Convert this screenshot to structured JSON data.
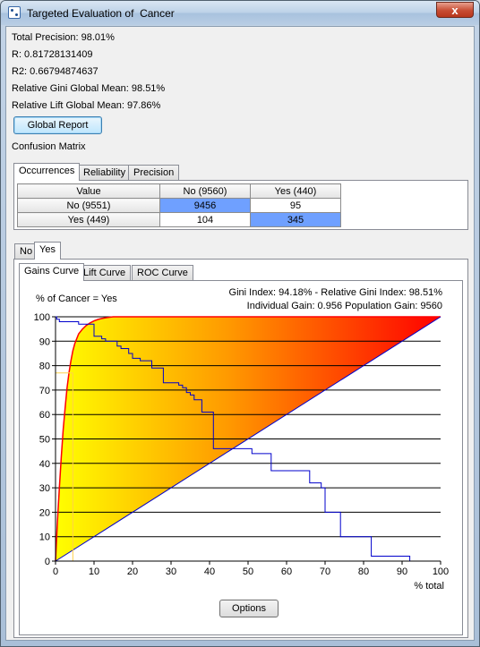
{
  "window": {
    "title": "Targeted Evaluation of  Cancer",
    "close_label": "x"
  },
  "stats": {
    "total_precision": "Total Precision: 98.01%",
    "r": "R: 0.81728131409",
    "r2": "R2: 0.66794874637",
    "gini_mean": "Relative Gini Global Mean: 98.51%",
    "lift_mean": "Relative Lift Global Mean: 97.86%"
  },
  "global_report_label": "Global Report",
  "confusion_label": "Confusion Matrix",
  "matrix_tabs": [
    "Occurrences",
    "Reliability",
    "Precision"
  ],
  "matrix": {
    "headers": [
      "Value",
      "No (9560)",
      "Yes (440)"
    ],
    "rows": [
      {
        "label": "No (9551)",
        "no": "9456",
        "yes": "95"
      },
      {
        "label": "Yes (449)",
        "no": "104",
        "yes": "345"
      }
    ]
  },
  "class_tabs": [
    "No",
    "Yes"
  ],
  "curve_tabs": [
    "Gains Curve",
    "Lift Curve",
    "ROC Curve"
  ],
  "colors": {
    "highlight": "#6fa0ff",
    "curve_red": "#ff0000",
    "curve_blue": "#0000cc"
  },
  "chart_data": {
    "type": "line",
    "title": "% of Cancer = Yes",
    "info_line1": "Gini Index: 94.18% - Relative Gini Index: 98.51%",
    "info_line2": "Individual Gain: 0.956 Population Gain: 9560",
    "xlabel": "% total",
    "xlim": [
      0,
      100
    ],
    "ylim": [
      0,
      100
    ],
    "xticks": [
      "0",
      "10",
      "20",
      "30",
      "40",
      "50",
      "60",
      "70",
      "80",
      "90",
      "100"
    ],
    "yticks": [
      "0",
      "10",
      "20",
      "30",
      "40",
      "50",
      "60",
      "70",
      "80",
      "90",
      "100"
    ],
    "grid": true,
    "series": [
      {
        "x": [
          0,
          0.5,
          1,
          1.5,
          2,
          2.5,
          3,
          3.5,
          4,
          4.5,
          5,
          6,
          7,
          8,
          9,
          10,
          11,
          12,
          13,
          14,
          15,
          20,
          30,
          40,
          50,
          60,
          70,
          80,
          90,
          100
        ],
        "y": [
          0,
          16,
          30,
          43,
          54,
          63,
          71,
          77,
          82,
          86,
          89,
          93,
          95,
          96.5,
          97.5,
          98.3,
          98.9,
          99.3,
          99.6,
          99.8,
          100,
          100,
          100,
          100,
          100,
          100,
          100,
          100,
          100,
          100
        ]
      },
      {
        "x": [
          0,
          0.3,
          0.3,
          1,
          1,
          6,
          6,
          10,
          10,
          12,
          12,
          13,
          13,
          16,
          16,
          17,
          17,
          19,
          19,
          20,
          20,
          22,
          22,
          25,
          25,
          28,
          28,
          32,
          32,
          33,
          33,
          34,
          34,
          35,
          35,
          36,
          36,
          38,
          38,
          41,
          41,
          51,
          51,
          56,
          56,
          66,
          66,
          69,
          69,
          70,
          70,
          74,
          74,
          82,
          82,
          92,
          92,
          100
        ],
        "y": [
          100,
          100,
          99,
          99,
          98,
          98,
          97,
          97,
          92,
          92,
          91,
          91,
          90,
          90,
          88,
          88,
          87,
          87,
          85,
          85,
          83,
          83,
          82,
          82,
          79,
          79,
          73,
          73,
          72,
          72,
          71,
          71,
          69,
          69,
          68,
          68,
          66,
          66,
          61,
          61,
          46,
          46,
          44,
          44,
          37,
          37,
          32,
          32,
          30,
          30,
          20,
          20,
          10,
          10,
          2,
          2,
          0,
          0
        ]
      },
      {
        "x": [
          0,
          100
        ],
        "y": [
          0,
          100
        ]
      }
    ],
    "markers": [
      {
        "x": 4.5
      }
    ]
  },
  "options_label": "Options"
}
